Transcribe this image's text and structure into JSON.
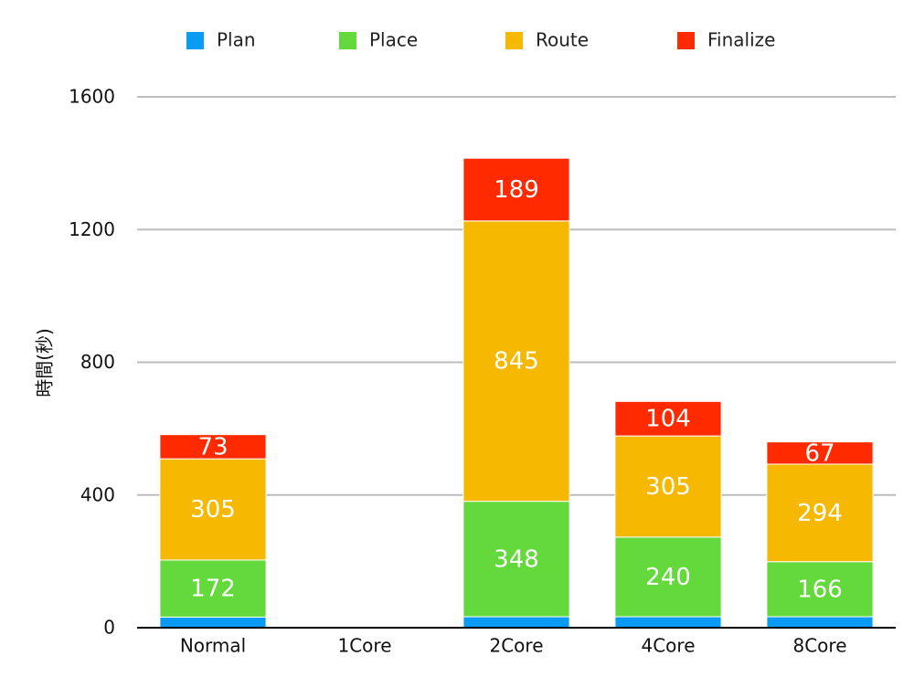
{
  "chart_data": {
    "type": "bar",
    "stacked": true,
    "title": "",
    "xlabel": "",
    "ylabel": "時間(秒)",
    "ylim": [
      0,
      1600
    ],
    "yticks": [
      0,
      400,
      800,
      1200,
      1600
    ],
    "grid": true,
    "legend_position": "top",
    "categories": [
      "Normal",
      "1Core",
      "2Core",
      "4Core",
      "8Core"
    ],
    "series": [
      {
        "name": "Plan",
        "color": "#0a9cf5",
        "values": [
          32,
          0,
          33,
          33,
          33
        ],
        "labels": [
          "",
          "",
          "",
          "",
          ""
        ]
      },
      {
        "name": "Place",
        "color": "#64d93c",
        "values": [
          172,
          0,
          348,
          240,
          166
        ],
        "labels": [
          "172",
          "",
          "348",
          "240",
          "166"
        ]
      },
      {
        "name": "Route",
        "color": "#f6b800",
        "values": [
          305,
          0,
          845,
          305,
          294
        ],
        "labels": [
          "305",
          "",
          "845",
          "305",
          "294"
        ]
      },
      {
        "name": "Finalize",
        "color": "#ff2a00",
        "values": [
          73,
          0,
          189,
          104,
          67
        ],
        "labels": [
          "73",
          "",
          "189",
          "104",
          "67"
        ]
      }
    ]
  }
}
